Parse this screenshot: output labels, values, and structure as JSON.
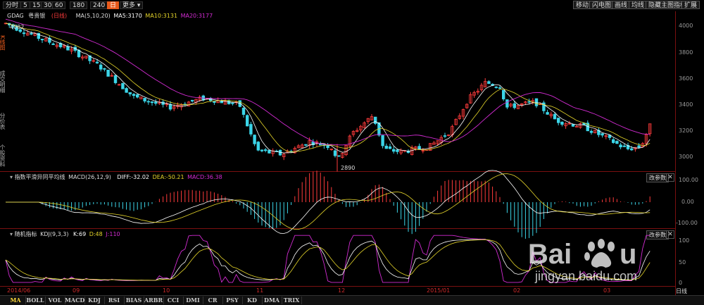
{
  "toolbar": {
    "periods": [
      "分时",
      "5",
      "15",
      "30",
      "60",
      "180",
      "240",
      "日",
      "更多"
    ],
    "active_period": "日",
    "right_buttons": [
      "移动",
      "闪电图",
      "画线",
      "均线",
      "隐藏主图指标",
      "扩展"
    ]
  },
  "left_tabs": [
    "K线图",
    "成交明细",
    "分价表",
    "个股资料"
  ],
  "main_panel": {
    "symbol_code": "GDAG",
    "symbol_name": "粤贵银",
    "period_tag": "(日线)",
    "ma_label": "MA(5,10,20)",
    "ma5": "MA5:3170",
    "ma10": "MA10:3131",
    "ma20": "MA20:3177",
    "high_marker": "4082",
    "low_marker": "2890",
    "y_ticks": [
      "4000",
      "3800",
      "3600",
      "3400",
      "3200",
      "3000"
    ]
  },
  "macd_panel": {
    "title": "指数平滑异同平均线",
    "params": "MACD(26,12,9)",
    "diff": "DIFF:-32.02",
    "dea": "DEA:-50.21",
    "macd": "MACD:36.38",
    "param_button": "改参数",
    "close": "✕",
    "y_ticks": [
      "100.00",
      "0.00",
      "-100.00"
    ]
  },
  "kdj_panel": {
    "title": "随机指标",
    "params": "KDJ(9,3,3)",
    "k": "K:69",
    "d": "D:48",
    "j": "J:110",
    "param_button": "改参数",
    "close": "✕",
    "y_ticks": [
      "100",
      "50",
      "0"
    ]
  },
  "x_axis_labels": [
    "2014/06",
    "09",
    "10",
    "11",
    "12",
    "2015/01",
    "02",
    "03"
  ],
  "x_axis_unit": "日线",
  "indicator_tabs": [
    "MA",
    "BOLL",
    "VOL",
    "MACD",
    "KDJ",
    "RSI",
    "BIAS",
    "ARBR",
    "CCI",
    "DMI",
    "CR",
    "PSY",
    "KD",
    "DMA",
    "TRIX"
  ],
  "active_indicator": "MA",
  "watermark": {
    "text": "jingyan.baidu.com"
  },
  "colors": {
    "up": "#ff3b3b",
    "down": "#3bd5e8",
    "ma5": "#ffffff",
    "ma10": "#e5d52a",
    "ma20": "#d22bd2",
    "accent": "#e85a1c"
  }
}
